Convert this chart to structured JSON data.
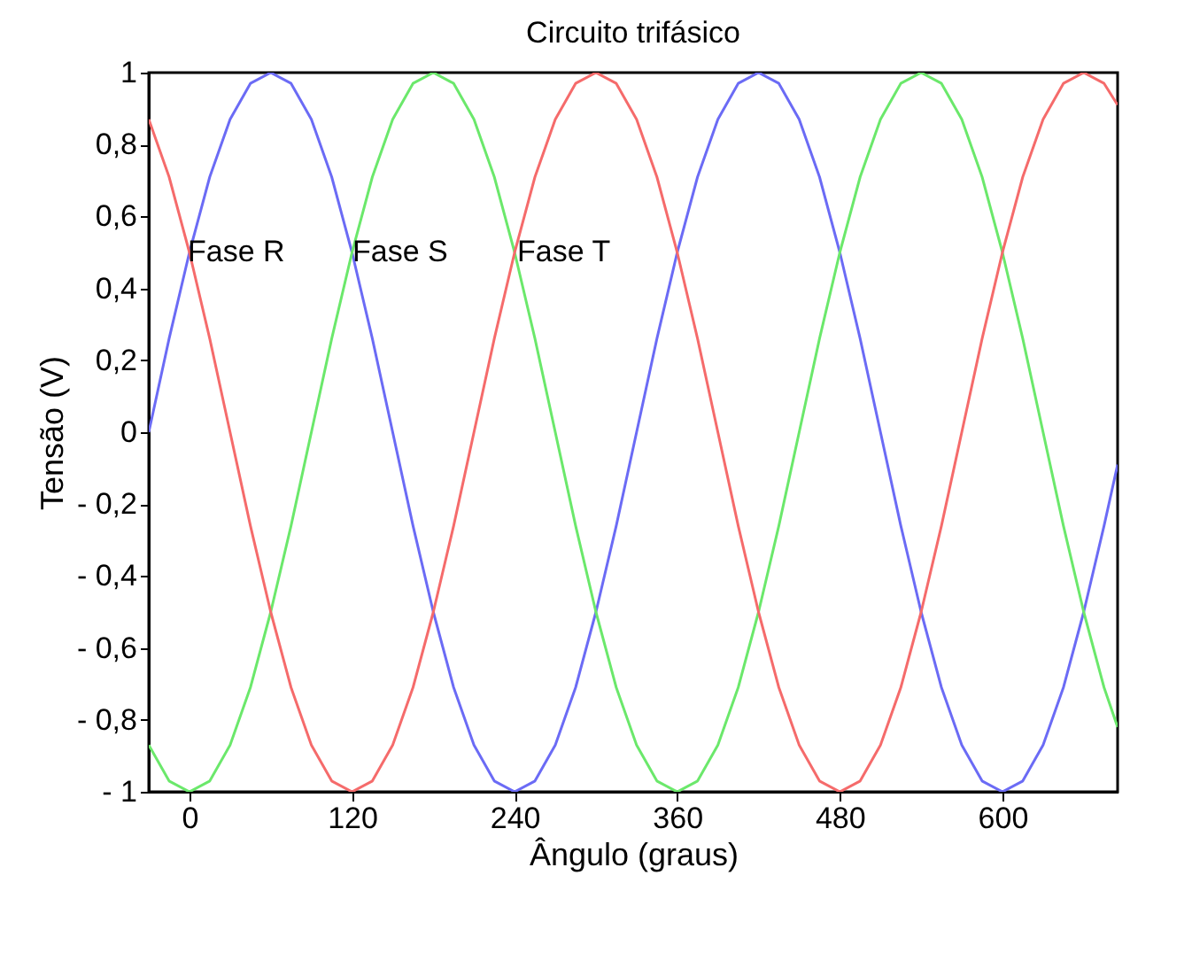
{
  "chart_data": {
    "type": "line",
    "title": "Circuito trifásico",
    "xlabel": "Ângulo (graus)",
    "ylabel": "Tensão (V)",
    "x": [
      -30,
      -15,
      0,
      15,
      30,
      45,
      60,
      75,
      90,
      105,
      120,
      135,
      150,
      165,
      180,
      195,
      210,
      225,
      240,
      255,
      270,
      285,
      300,
      315,
      330,
      345,
      360,
      375,
      390,
      405,
      420,
      435,
      450,
      465,
      480,
      495,
      510,
      525,
      540,
      555,
      570,
      585,
      600,
      615,
      630,
      645,
      660,
      675,
      685
    ],
    "series": [
      {
        "name": "Fase R",
        "color": "#6b6bf5",
        "values": [
          0,
          0.26,
          0.5,
          0.71,
          0.87,
          0.97,
          1,
          0.97,
          0.87,
          0.71,
          0.5,
          0.26,
          0,
          -0.26,
          -0.5,
          -0.71,
          -0.87,
          -0.97,
          -1,
          -0.97,
          -0.87,
          -0.71,
          -0.5,
          -0.26,
          0,
          0.26,
          0.5,
          0.71,
          0.87,
          0.97,
          1,
          0.97,
          0.87,
          0.71,
          0.5,
          0.26,
          0,
          -0.26,
          -0.5,
          -0.71,
          -0.87,
          -0.97,
          -1,
          -0.97,
          -0.87,
          -0.71,
          -0.5,
          -0.26,
          -0.09
        ]
      },
      {
        "name": "Fase S",
        "color": "#6be86b",
        "values": [
          -0.87,
          -0.97,
          -1,
          -0.97,
          -0.87,
          -0.71,
          -0.5,
          -0.26,
          0,
          0.26,
          0.5,
          0.71,
          0.87,
          0.97,
          1,
          0.97,
          0.87,
          0.71,
          0.5,
          0.26,
          0,
          -0.26,
          -0.5,
          -0.71,
          -0.87,
          -0.97,
          -1,
          -0.97,
          -0.87,
          -0.71,
          -0.5,
          -0.26,
          0,
          0.26,
          0.5,
          0.71,
          0.87,
          0.97,
          1,
          0.97,
          0.87,
          0.71,
          0.5,
          0.26,
          0,
          -0.26,
          -0.5,
          -0.71,
          -0.82
        ]
      },
      {
        "name": "Fase T",
        "color": "#f56b6b",
        "values": [
          0.87,
          0.71,
          0.5,
          0.26,
          0,
          -0.26,
          -0.5,
          -0.71,
          -0.87,
          -0.97,
          -1,
          -0.97,
          -0.87,
          -0.71,
          -0.5,
          -0.26,
          0,
          0.26,
          0.5,
          0.71,
          0.87,
          0.97,
          1,
          0.97,
          0.87,
          0.71,
          0.5,
          0.26,
          0,
          -0.26,
          -0.5,
          -0.71,
          -0.87,
          -0.97,
          -1,
          -0.97,
          -0.87,
          -0.71,
          -0.5,
          -0.26,
          0,
          0.26,
          0.5,
          0.71,
          0.87,
          0.97,
          1,
          0.97,
          0.91
        ]
      }
    ],
    "xlim": [
      -30,
      685
    ],
    "xticks": [
      0,
      120,
      240,
      360,
      480,
      600
    ],
    "ylim": [
      -1,
      1
    ],
    "yticks": [
      {
        "value": -1,
        "label": "- 1"
      },
      {
        "value": -0.8,
        "label": "- 0,8"
      },
      {
        "value": -0.6,
        "label": "- 0,6"
      },
      {
        "value": -0.4,
        "label": "- 0,4"
      },
      {
        "value": -0.2,
        "label": "- 0,2"
      },
      0,
      {
        "value": 0.2,
        "label": "0,2"
      },
      {
        "value": 0.4,
        "label": "0,4"
      },
      {
        "value": 0.6,
        "label": "0,6"
      },
      {
        "value": 0.8,
        "label": "0,8"
      },
      1
    ],
    "grid": false,
    "legend": false,
    "marker": "none",
    "line_style": "solid"
  }
}
